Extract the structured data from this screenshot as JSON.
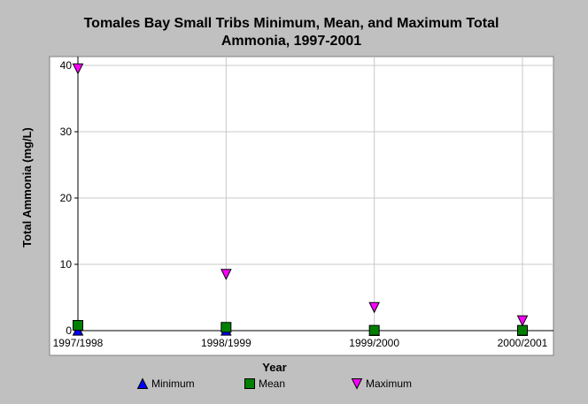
{
  "chart_data": {
    "type": "scatter",
    "title_line1": "Tomales Bay Small Tribs Minimum, Mean, and Maximum Total",
    "title_line2": "Ammonia, 1997-2001",
    "xlabel": "Year",
    "ylabel": "Total Ammonia (mg/L)",
    "categories": [
      "1997/1998",
      "1998/1999",
      "1999/2000",
      "2000/2001"
    ],
    "ylim": [
      0,
      40
    ],
    "yticks": [
      "0",
      "10",
      "20",
      "30",
      "40"
    ],
    "grid": true,
    "legend_position": "bottom",
    "series": [
      {
        "name": "Minimum",
        "marker": "triangle-up",
        "color": "#0000ff",
        "values": [
          0.05,
          0.05,
          0.0,
          0.0
        ]
      },
      {
        "name": "Mean",
        "marker": "square",
        "color": "#008000",
        "values": [
          0.8,
          0.5,
          0.05,
          0.05
        ]
      },
      {
        "name": "Maximum",
        "marker": "triangle-down",
        "color": "#ff00ff",
        "values": [
          39.5,
          8.5,
          3.5,
          1.5
        ]
      }
    ]
  }
}
